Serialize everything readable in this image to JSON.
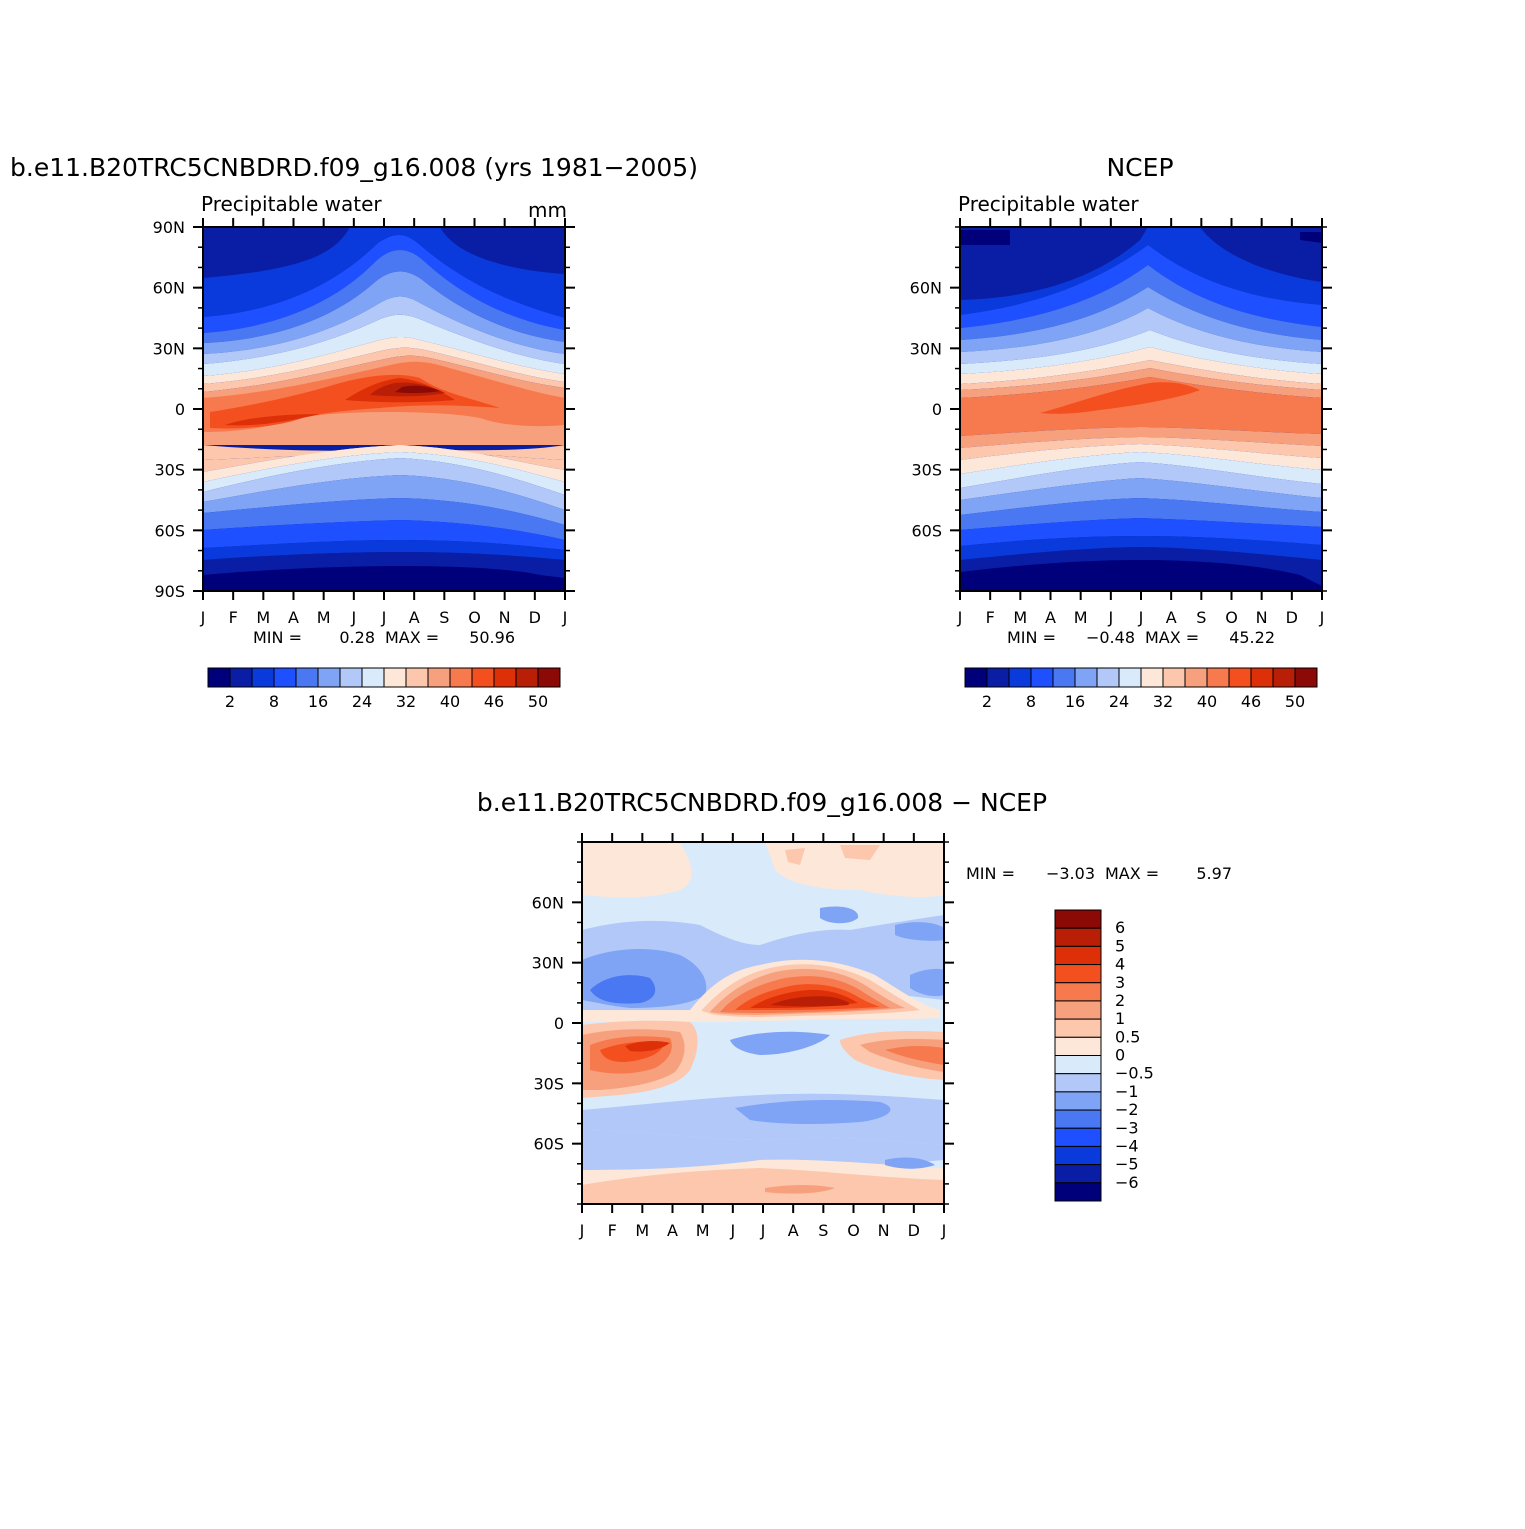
{
  "colors": {
    "pw_fill": [
      "#00007a",
      "#0a1ea5",
      "#0a3adb",
      "#1e50ff",
      "#4a78f2",
      "#7fa4f5",
      "#b1c8f8",
      "#d9eafb",
      "#fde7d8",
      "#fcc7ad",
      "#f7a07d",
      "#f77a4f",
      "#f4501f",
      "#de3008",
      "#b81f06",
      "#8b0a06"
    ],
    "diff_fill": [
      "#00007a",
      "#0a1ea5",
      "#0a3adb",
      "#1e50ff",
      "#4a78f2",
      "#7fa4f5",
      "#b1c8f8",
      "#d9eafb",
      "#fde7d8",
      "#fcc7ad",
      "#f7a07d",
      "#f77a4f",
      "#f4501f",
      "#de3008",
      "#b81f06",
      "#8b0a06"
    ]
  },
  "chart_data": [
    {
      "type": "heatmap",
      "title": "b.e11.B20TRC5CNBDRD.f09_g16.008 (yrs 1981−2005)",
      "subtitle_left": "Precipitable water",
      "subtitle_right": "mm",
      "x_ticks": [
        "J",
        "F",
        "M",
        "A",
        "M",
        "J",
        "J",
        "A",
        "S",
        "O",
        "N",
        "D",
        "J"
      ],
      "y_ticks": [
        "90N",
        "60N",
        "30N",
        "0",
        "30S",
        "60S",
        "90S"
      ],
      "stats": {
        "min_label": "MIN =",
        "min": "0.28",
        "max_label": "MAX =",
        "max": "50.96"
      },
      "colorbar_labels": [
        "2",
        "8",
        "16",
        "24",
        "32",
        "40",
        "46",
        "50"
      ]
    },
    {
      "type": "heatmap",
      "title": "NCEP",
      "subtitle_left": "Precipitable water",
      "x_ticks": [
        "J",
        "F",
        "M",
        "A",
        "M",
        "J",
        "J",
        "A",
        "S",
        "O",
        "N",
        "D",
        "J"
      ],
      "y_ticks": [
        "60N",
        "30N",
        "0",
        "30S",
        "60S"
      ],
      "stats": {
        "min_label": "MIN =",
        "min": "−0.48",
        "max_label": "MAX =",
        "max": "45.22"
      },
      "colorbar_labels": [
        "2",
        "8",
        "16",
        "24",
        "32",
        "40",
        "46",
        "50"
      ]
    },
    {
      "type": "heatmap",
      "title": "b.e11.B20TRC5CNBDRD.f09_g16.008 − NCEP",
      "x_ticks": [
        "J",
        "F",
        "M",
        "A",
        "M",
        "J",
        "J",
        "A",
        "S",
        "O",
        "N",
        "D",
        "J"
      ],
      "y_ticks": [
        "60N",
        "30N",
        "0",
        "30S",
        "60S"
      ],
      "stats": {
        "min_label": "MIN =",
        "min": "−3.03",
        "max_label": "MAX =",
        "max": "5.97"
      },
      "colorbar_labels": [
        "6",
        "5",
        "4",
        "3",
        "2",
        "1",
        "0.5",
        "0",
        "−0.5",
        "−1",
        "−2",
        "−3",
        "−4",
        "−5",
        "−6"
      ]
    }
  ]
}
